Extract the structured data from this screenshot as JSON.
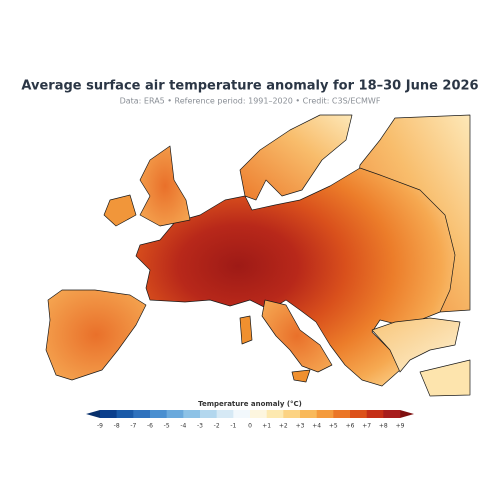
{
  "header": {
    "title": "Average surface air temperature anomaly for 18–30 June 2026",
    "subtitle": "Data: ERA5 • Reference period: 1991–2020 • Credit: C3S/ECMWF"
  },
  "legend": {
    "label": "Temperature anomaly (°C)",
    "ticks": [
      "-9",
      "-8",
      "-7",
      "-6",
      "-5",
      "-4",
      "-3",
      "-2",
      "-1",
      "0",
      "+1",
      "+2",
      "+3",
      "+4",
      "+5",
      "+6",
      "+7",
      "+8",
      "+9"
    ],
    "colors": [
      "#08306b",
      "#0b3f8c",
      "#1a5aa8",
      "#2f72bd",
      "#4a8fd0",
      "#6aa9dc",
      "#8dc2e6",
      "#b3d7ee",
      "#d6e9f5",
      "#f2f8fc",
      "#fdf6df",
      "#fde9b0",
      "#fcd383",
      "#f9b95a",
      "#f49a3c",
      "#eb7626",
      "#dc511a",
      "#c52f17",
      "#a71d1d",
      "#7f1010"
    ]
  }
}
